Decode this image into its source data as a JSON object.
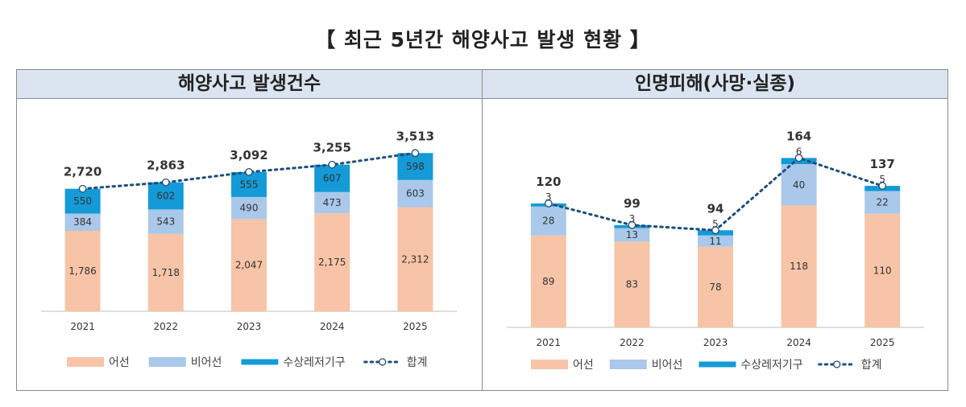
{
  "title": "【 최근 5년간 해양사고 발생 현황 】",
  "colors": {
    "fishing": "#f7c4a7",
    "nonfishing": "#a9c8ea",
    "leisure": "#149ad6",
    "total": "#1f4e79",
    "header_bg": "#dbe5f1"
  },
  "chart_data": [
    {
      "type": "bar",
      "stacked": true,
      "title": "해양사고 발생건수",
      "categories": [
        "2021",
        "2022",
        "2023",
        "2024",
        "2025"
      ],
      "series": [
        {
          "name": "어선",
          "values": [
            1786,
            1718,
            2047,
            2175,
            2312
          ]
        },
        {
          "name": "비어선",
          "values": [
            384,
            543,
            490,
            473,
            603
          ]
        },
        {
          "name": "수상레저기구",
          "values": [
            550,
            602,
            555,
            607,
            598
          ]
        }
      ],
      "totals_line": {
        "name": "합계",
        "values": [
          2720,
          2863,
          3092,
          3255,
          3513
        ]
      },
      "value_labels": {
        "어선": [
          "1,786",
          "1,718",
          "2,047",
          "2,175",
          "2,312"
        ],
        "비어선": [
          "384",
          "543",
          "490",
          "473",
          "603"
        ],
        "수상레저기구": [
          "550",
          "602",
          "555",
          "607",
          "598"
        ],
        "합계": [
          "2,720",
          "2,863",
          "3,092",
          "3,255",
          "3,513"
        ]
      },
      "ylim": [
        0,
        4000
      ],
      "grid": false,
      "legend": "bottom"
    },
    {
      "type": "bar",
      "stacked": true,
      "title": "인명피해(사망·실종)",
      "categories": [
        "2021",
        "2022",
        "2023",
        "2024",
        "2025"
      ],
      "series": [
        {
          "name": "어선",
          "values": [
            89,
            83,
            78,
            118,
            110
          ]
        },
        {
          "name": "비어선",
          "values": [
            28,
            13,
            11,
            40,
            22
          ]
        },
        {
          "name": "수상레저기구",
          "values": [
            3,
            3,
            5,
            6,
            5
          ]
        }
      ],
      "totals_line": {
        "name": "합계",
        "values": [
          120,
          99,
          94,
          164,
          137
        ]
      },
      "value_labels": {
        "어선": [
          "89",
          "83",
          "78",
          "118",
          "110"
        ],
        "비어선": [
          "28",
          "13",
          "11",
          "40",
          "22"
        ],
        "수상레저기구": [
          "3",
          "3",
          "5",
          "6",
          "5"
        ],
        "합계": [
          "120",
          "99",
          "94",
          "164",
          "137"
        ]
      },
      "ylim": [
        0,
        190
      ],
      "grid": false,
      "legend": "bottom"
    }
  ]
}
